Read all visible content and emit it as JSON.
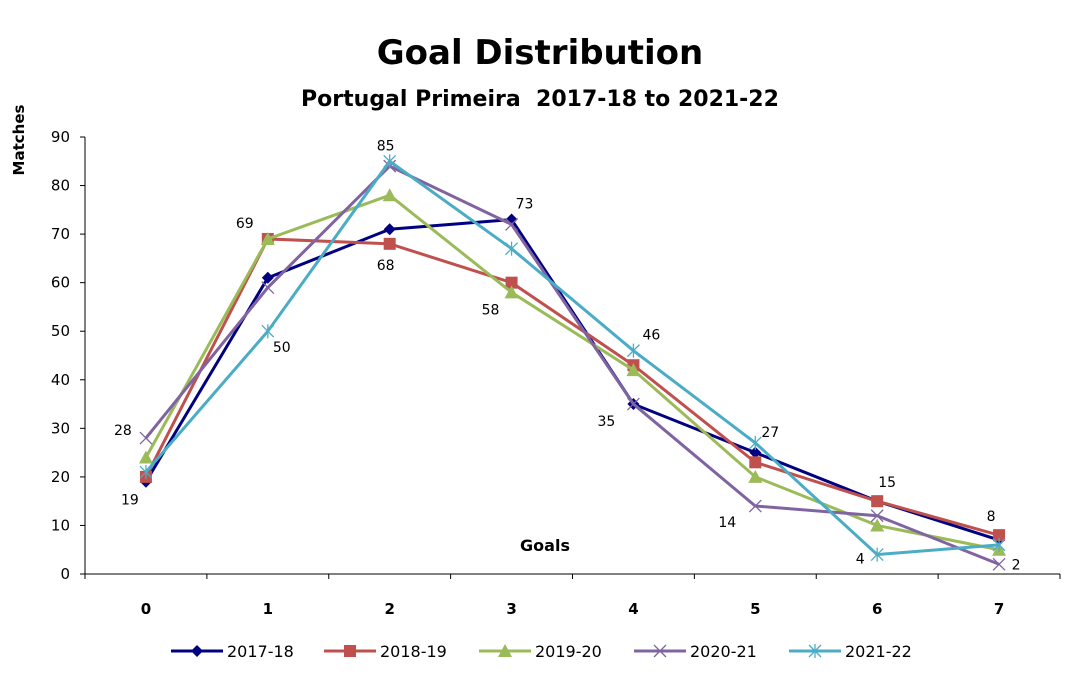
{
  "chart_data": {
    "type": "line",
    "title": "Goal Distribution",
    "subtitle": "Portugal Primeira  2017-18 to 2021-22",
    "xlabel": "Goals",
    "ylabel": "Matches",
    "categories": [
      "0",
      "1",
      "2",
      "3",
      "4",
      "5",
      "6",
      "7"
    ],
    "ylim": [
      0,
      90
    ],
    "yticks": [
      0,
      10,
      20,
      30,
      40,
      50,
      60,
      70,
      80,
      90
    ],
    "grid": false,
    "legend_position": "bottom",
    "series": [
      {
        "name": "2017-18",
        "color": "#000080",
        "marker": "diamond",
        "values": [
          19,
          61,
          71,
          73,
          35,
          25,
          15,
          7
        ]
      },
      {
        "name": "2018-19",
        "color": "#C0504D",
        "marker": "square",
        "values": [
          20,
          69,
          68,
          60,
          43,
          23,
          15,
          8
        ]
      },
      {
        "name": "2019-20",
        "color": "#9BBB59",
        "marker": "triangle",
        "values": [
          24,
          69,
          78,
          58,
          42,
          20,
          10,
          5
        ]
      },
      {
        "name": "2020-21",
        "color": "#8064A2",
        "marker": "x",
        "values": [
          28,
          59,
          84,
          72,
          35,
          14,
          12,
          2
        ]
      },
      {
        "name": "2021-22",
        "color": "#4BACC6",
        "marker": "star",
        "values": [
          21,
          50,
          85,
          67,
          46,
          27,
          4,
          6
        ]
      }
    ],
    "data_labels": [
      {
        "text": "28",
        "goal": 0,
        "value": 28
      },
      {
        "text": "19",
        "goal": 0,
        "value": 19
      },
      {
        "text": "69",
        "goal": 1,
        "value": 69
      },
      {
        "text": "50",
        "goal": 1,
        "value": 50
      },
      {
        "text": "85",
        "goal": 2,
        "value": 85
      },
      {
        "text": "68",
        "goal": 2,
        "value": 68
      },
      {
        "text": "73",
        "goal": 3,
        "value": 73
      },
      {
        "text": "58",
        "goal": 3,
        "value": 58
      },
      {
        "text": "35",
        "goal": 4,
        "value": 35
      },
      {
        "text": "46",
        "goal": 4,
        "value": 46
      },
      {
        "text": "27",
        "goal": 5,
        "value": 27
      },
      {
        "text": "14",
        "goal": 5,
        "value": 14
      },
      {
        "text": "15",
        "goal": 6,
        "value": 15
      },
      {
        "text": "4",
        "goal": 6,
        "value": 4
      },
      {
        "text": "8",
        "goal": 7,
        "value": 8
      },
      {
        "text": "2",
        "goal": 7,
        "value": 2
      }
    ]
  }
}
